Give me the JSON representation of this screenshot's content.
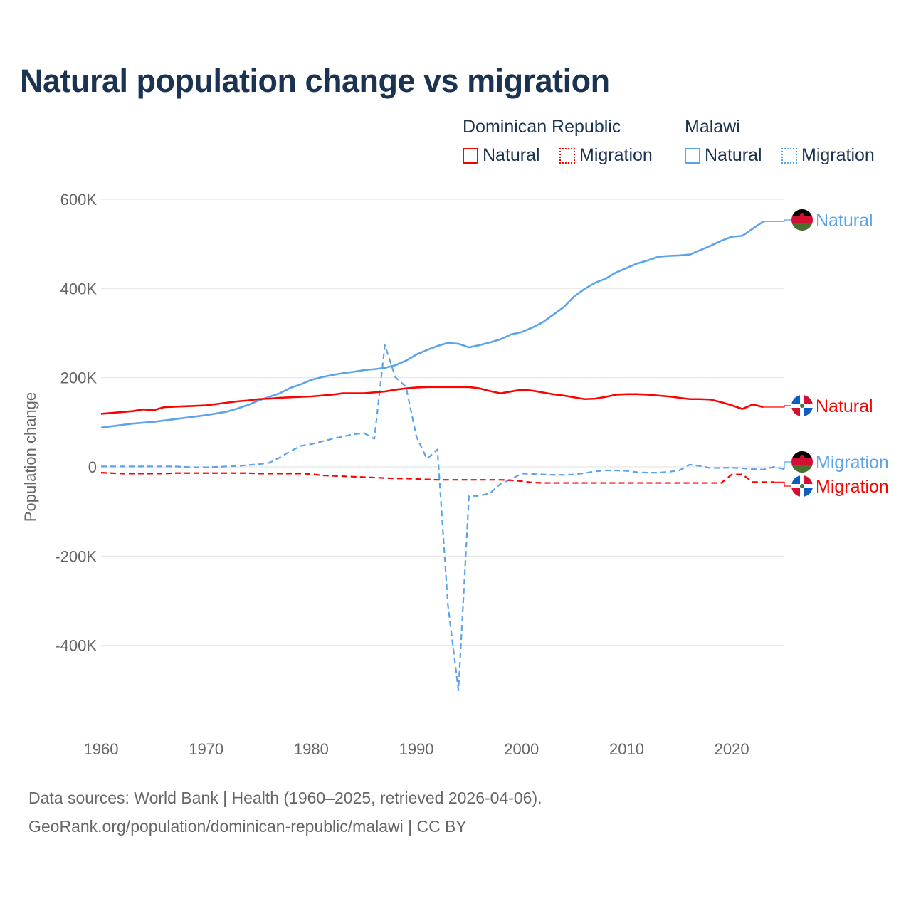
{
  "title": "Natural population change vs migration",
  "legend": {
    "groups": [
      {
        "name": "Dominican Republic",
        "items": [
          {
            "label": "Natural",
            "style": "solid"
          },
          {
            "label": "Migration",
            "style": "dotted"
          }
        ],
        "color": "#ff0000"
      },
      {
        "name": "Malawi",
        "items": [
          {
            "label": "Natural",
            "style": "solid"
          },
          {
            "label": "Migration",
            "style": "dotted"
          }
        ],
        "color": "#5ba4ec"
      }
    ]
  },
  "footer": {
    "line1": "Data sources: World Bank | Health (1960–2025, retrieved 2026-04-06).",
    "line2": "GeoRank.org/population/dominican-republic/malawi | CC BY"
  },
  "chart_data": {
    "type": "line",
    "title": "Natural population change vs migration",
    "xlabel": "",
    "ylabel": "Population change",
    "xlim": [
      1960,
      2025
    ],
    "ylim": [
      -600000,
      600000
    ],
    "x_ticks": [
      1960,
      1970,
      1980,
      1990,
      2000,
      2010,
      2020
    ],
    "x_tick_labels": [
      "1960",
      "1970",
      "1980",
      "1990",
      "2000",
      "2010",
      "2020"
    ],
    "y_ticks": [
      600000,
      400000,
      200000,
      0,
      -200000,
      -400000
    ],
    "y_tick_labels": [
      "600K",
      "400K",
      "200K",
      "0",
      "-200K",
      "-400K"
    ],
    "grid": true,
    "legend_position": "top-right",
    "series": [
      {
        "name": "Malawi Natural",
        "end_label": "Natural",
        "country": "Malawi",
        "color": "#5ba4ec",
        "dash": "solid",
        "start_year": 1960,
        "values": [
          88000,
          91000,
          94000,
          97000,
          99000,
          101000,
          104000,
          107000,
          110000,
          113000,
          116000,
          120000,
          124000,
          131000,
          139000,
          149000,
          157000,
          165000,
          177000,
          185000,
          195000,
          201000,
          206000,
          210000,
          213000,
          217000,
          219000,
          222000,
          228000,
          238000,
          252000,
          262000,
          271000,
          278000,
          276000,
          268000,
          273000,
          279000,
          286000,
          297000,
          302000,
          312000,
          324000,
          341000,
          358000,
          382000,
          399000,
          413000,
          422000,
          436000,
          446000,
          456000,
          463000,
          471000,
          473000,
          474000,
          476000,
          486000,
          496000,
          507000,
          516000,
          518000,
          534000,
          550000
        ]
      },
      {
        "name": "Dominican Republic Natural",
        "end_label": "Natural",
        "country": "Dominican Republic",
        "color": "#ff0000",
        "dash": "solid",
        "start_year": 1960,
        "values": [
          119000,
          121000,
          123000,
          125000,
          129000,
          127000,
          134000,
          135000,
          136000,
          137000,
          138000,
          141000,
          144000,
          147000,
          149000,
          152000,
          153000,
          155000,
          156000,
          157000,
          158000,
          160000,
          162000,
          165000,
          165000,
          165000,
          167000,
          169000,
          173000,
          176000,
          178000,
          179000,
          179000,
          179000,
          179000,
          179000,
          176000,
          170000,
          165000,
          169000,
          173000,
          171000,
          167000,
          163000,
          160000,
          156000,
          152000,
          153000,
          157000,
          162000,
          163000,
          163000,
          162000,
          160000,
          158000,
          155000,
          152000,
          152000,
          151000,
          145000,
          138000,
          130000,
          140000,
          134000
        ]
      },
      {
        "name": "Malawi Migration",
        "end_label": "Migration",
        "country": "Malawi",
        "color": "#5ba4ec",
        "dash": "dashed",
        "start_year": 1960,
        "values": [
          1000,
          1000,
          1000,
          1000,
          1000,
          1000,
          1000,
          1000,
          0,
          -1000,
          -1000,
          0,
          1000,
          2000,
          4000,
          6000,
          9000,
          21000,
          35000,
          47000,
          51000,
          57000,
          63000,
          68000,
          73000,
          76000,
          63000,
          273000,
          201000,
          180000,
          68000,
          18000,
          39000,
          -310000,
          -501000,
          -65000,
          -65000,
          -59000,
          -38000,
          -28000,
          -15000,
          -16000,
          -17000,
          -18000,
          -18000,
          -17000,
          -14000,
          -10000,
          -8000,
          -8000,
          -9000,
          -12000,
          -13000,
          -13000,
          -11000,
          -8000,
          5000,
          2000,
          -3000,
          -2000,
          -2000,
          -3000,
          -5000,
          -6000,
          0,
          -5000
        ]
      },
      {
        "name": "Dominican Republic Migration",
        "end_label": "Migration",
        "country": "Dominican Republic",
        "color": "#ff0000",
        "dash": "dashed",
        "start_year": 1960,
        "values": [
          -13000,
          -14000,
          -15000,
          -15000,
          -15000,
          -15000,
          -15000,
          -14000,
          -14000,
          -14000,
          -14000,
          -14000,
          -14000,
          -14000,
          -14000,
          -15000,
          -15000,
          -15000,
          -15000,
          -15000,
          -16000,
          -19000,
          -20000,
          -21000,
          -22000,
          -23000,
          -24000,
          -25000,
          -26000,
          -26000,
          -27000,
          -28000,
          -29000,
          -29000,
          -29000,
          -29000,
          -29000,
          -29000,
          -29000,
          -30000,
          -32000,
          -35000,
          -36000,
          -36000,
          -36000,
          -36000,
          -36000,
          -36000,
          -36000,
          -36000,
          -36000,
          -36000,
          -36000,
          -36000,
          -36000,
          -36000,
          -36000,
          -36000,
          -36000,
          -36000,
          -17000,
          -17000,
          -34000,
          -34000,
          -34000
        ]
      }
    ]
  }
}
